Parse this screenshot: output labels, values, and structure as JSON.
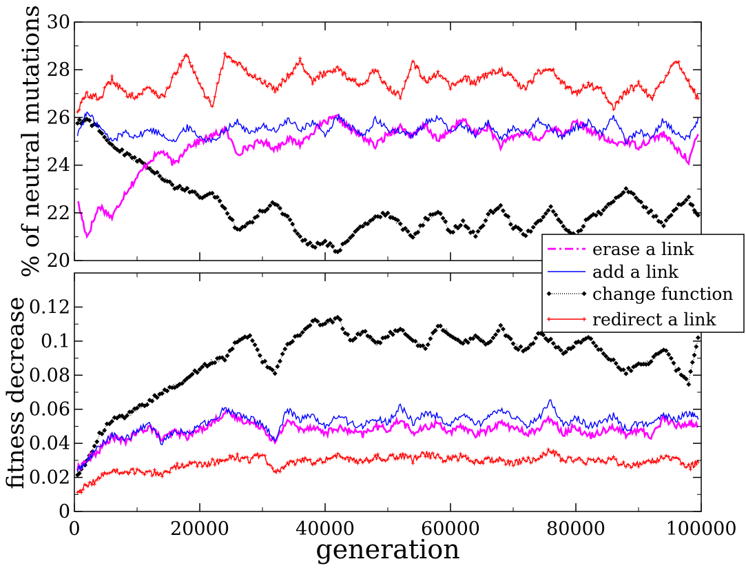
{
  "chart_data": [
    {
      "type": "line",
      "panel": "top",
      "ylabel": "% of neutral mutations",
      "xlabel": "",
      "xlim": [
        0,
        100000
      ],
      "ylim": [
        20,
        30
      ],
      "xticks": [],
      "yticks": [
        20,
        22,
        24,
        26,
        28,
        30
      ],
      "x": [
        500,
        2000,
        4000,
        6000,
        8000,
        10000,
        12000,
        14000,
        16000,
        18000,
        20000,
        22000,
        24000,
        26000,
        28000,
        30000,
        32000,
        34000,
        36000,
        38000,
        40000,
        42000,
        44000,
        46000,
        48000,
        50000,
        52000,
        54000,
        56000,
        58000,
        60000,
        62000,
        64000,
        66000,
        68000,
        70000,
        72000,
        74000,
        76000,
        78000,
        80000,
        82000,
        84000,
        86000,
        88000,
        90000,
        92000,
        94000,
        96000,
        98000,
        99500
      ],
      "series": [
        {
          "name": "erase a link",
          "color": "#ff00ff",
          "style": "dashdot",
          "values": [
            22.5,
            21.0,
            22.3,
            21.8,
            22.8,
            23.5,
            24.2,
            24.6,
            24.0,
            24.8,
            25.0,
            25.2,
            25.5,
            24.5,
            24.8,
            25.0,
            24.7,
            25.1,
            24.9,
            25.4,
            25.8,
            26.0,
            25.5,
            25.2,
            24.8,
            25.3,
            25.6,
            25.2,
            25.7,
            25.0,
            25.5,
            25.9,
            25.3,
            25.6,
            24.8,
            25.2,
            25.4,
            25.0,
            25.6,
            25.3,
            25.8,
            25.5,
            25.2,
            24.9,
            25.0,
            24.8,
            25.1,
            25.3,
            24.7,
            24.2,
            25.3
          ]
        },
        {
          "name": "add a link",
          "color": "#0000ff",
          "style": "solid",
          "values": [
            25.3,
            26.2,
            25.6,
            25.0,
            25.4,
            25.2,
            25.5,
            25.3,
            25.0,
            25.6,
            25.2,
            25.0,
            25.5,
            25.8,
            25.3,
            25.7,
            25.4,
            25.9,
            25.5,
            25.8,
            25.3,
            26.0,
            25.6,
            25.2,
            25.9,
            25.5,
            25.4,
            25.2,
            25.8,
            26.0,
            25.4,
            25.7,
            25.3,
            25.8,
            25.1,
            25.6,
            25.2,
            25.9,
            25.5,
            25.2,
            25.6,
            25.8,
            25.3,
            26.1,
            25.0,
            25.4,
            25.2,
            25.9,
            25.3,
            25.1,
            26.0
          ]
        },
        {
          "name": "change function",
          "color": "#000000",
          "style": "dotted-diamond",
          "values": [
            25.8,
            25.9,
            25.5,
            24.8,
            24.5,
            24.2,
            23.9,
            23.5,
            23.1,
            23.0,
            22.7,
            22.8,
            22.2,
            21.3,
            21.6,
            22.1,
            22.4,
            21.8,
            21.0,
            20.6,
            20.8,
            20.4,
            21.0,
            21.4,
            21.8,
            22.0,
            21.5,
            20.9,
            21.7,
            22.1,
            21.2,
            21.6,
            21.0,
            21.9,
            22.3,
            21.4,
            21.1,
            21.6,
            22.2,
            21.5,
            21.0,
            21.8,
            22.0,
            22.5,
            23.0,
            22.5,
            22.0,
            21.5,
            22.2,
            22.6,
            21.9
          ]
        },
        {
          "name": "redirect a link",
          "color": "#ff0000",
          "style": "solid-plus",
          "values": [
            26.3,
            27.0,
            26.8,
            27.6,
            27.0,
            26.9,
            27.3,
            26.8,
            27.8,
            28.6,
            27.3,
            26.5,
            28.6,
            28.3,
            27.8,
            27.5,
            27.2,
            27.7,
            28.4,
            27.5,
            27.9,
            28.1,
            27.6,
            27.3,
            28.0,
            27.2,
            26.9,
            28.4,
            27.5,
            27.8,
            27.3,
            27.6,
            27.5,
            27.8,
            28.0,
            27.6,
            27.2,
            27.9,
            28.1,
            27.4,
            27.0,
            27.4,
            27.2,
            26.4,
            27.1,
            27.4,
            26.8,
            27.5,
            28.4,
            27.5,
            26.8
          ]
        }
      ]
    },
    {
      "type": "line",
      "panel": "bottom",
      "ylabel": "fitness decrease",
      "xlabel": "generation",
      "xlim": [
        0,
        100000
      ],
      "ylim": [
        0,
        0.14
      ],
      "xticks": [
        0,
        20000,
        40000,
        60000,
        80000,
        100000
      ],
      "yticks": [
        0,
        0.02,
        0.04,
        0.06,
        0.08,
        0.1,
        0.12
      ],
      "x": [
        500,
        2000,
        4000,
        6000,
        8000,
        10000,
        12000,
        14000,
        16000,
        18000,
        20000,
        22000,
        24000,
        26000,
        28000,
        30000,
        32000,
        34000,
        36000,
        38000,
        40000,
        42000,
        44000,
        46000,
        48000,
        50000,
        52000,
        54000,
        56000,
        58000,
        60000,
        62000,
        64000,
        66000,
        68000,
        70000,
        72000,
        74000,
        76000,
        78000,
        80000,
        82000,
        84000,
        86000,
        88000,
        90000,
        92000,
        94000,
        96000,
        98000,
        99500
      ],
      "series": [
        {
          "name": "erase a link",
          "color": "#ff00ff",
          "style": "dashdot",
          "values": [
            0.025,
            0.03,
            0.036,
            0.044,
            0.041,
            0.046,
            0.05,
            0.042,
            0.047,
            0.044,
            0.048,
            0.052,
            0.058,
            0.055,
            0.052,
            0.05,
            0.04,
            0.054,
            0.048,
            0.05,
            0.046,
            0.049,
            0.047,
            0.045,
            0.05,
            0.048,
            0.054,
            0.046,
            0.049,
            0.052,
            0.046,
            0.05,
            0.045,
            0.048,
            0.052,
            0.049,
            0.046,
            0.048,
            0.055,
            0.046,
            0.05,
            0.044,
            0.047,
            0.05,
            0.045,
            0.048,
            0.044,
            0.055,
            0.05,
            0.052,
            0.05
          ]
        },
        {
          "name": "add a link",
          "color": "#0000ff",
          "style": "solid",
          "values": [
            0.024,
            0.03,
            0.038,
            0.045,
            0.042,
            0.047,
            0.052,
            0.04,
            0.048,
            0.046,
            0.05,
            0.054,
            0.06,
            0.057,
            0.054,
            0.052,
            0.042,
            0.06,
            0.054,
            0.056,
            0.05,
            0.056,
            0.052,
            0.05,
            0.055,
            0.052,
            0.062,
            0.052,
            0.058,
            0.056,
            0.05,
            0.058,
            0.05,
            0.055,
            0.06,
            0.056,
            0.05,
            0.054,
            0.065,
            0.05,
            0.055,
            0.05,
            0.052,
            0.056,
            0.048,
            0.052,
            0.05,
            0.056,
            0.054,
            0.058,
            0.054
          ]
        },
        {
          "name": "change function",
          "color": "#000000",
          "style": "dotted-diamond",
          "values": [
            0.022,
            0.03,
            0.045,
            0.054,
            0.056,
            0.06,
            0.065,
            0.07,
            0.074,
            0.078,
            0.084,
            0.088,
            0.09,
            0.1,
            0.104,
            0.088,
            0.082,
            0.098,
            0.104,
            0.112,
            0.11,
            0.114,
            0.1,
            0.106,
            0.098,
            0.103,
            0.108,
            0.1,
            0.096,
            0.11,
            0.104,
            0.098,
            0.104,
            0.098,
            0.108,
            0.098,
            0.094,
            0.104,
            0.1,
            0.094,
            0.098,
            0.102,
            0.094,
            0.088,
            0.082,
            0.086,
            0.088,
            0.096,
            0.084,
            0.076,
            0.102
          ]
        },
        {
          "name": "redirect a link",
          "color": "#ff0000",
          "style": "solid-plus",
          "values": [
            0.012,
            0.015,
            0.02,
            0.024,
            0.022,
            0.024,
            0.023,
            0.022,
            0.026,
            0.028,
            0.027,
            0.029,
            0.03,
            0.032,
            0.03,
            0.034,
            0.022,
            0.028,
            0.03,
            0.029,
            0.031,
            0.033,
            0.03,
            0.029,
            0.032,
            0.031,
            0.033,
            0.03,
            0.034,
            0.032,
            0.03,
            0.033,
            0.029,
            0.031,
            0.03,
            0.028,
            0.031,
            0.03,
            0.036,
            0.03,
            0.031,
            0.029,
            0.03,
            0.031,
            0.026,
            0.028,
            0.03,
            0.032,
            0.03,
            0.026,
            0.029
          ]
        }
      ]
    }
  ],
  "legend": {
    "placement": "right-middle",
    "entries": [
      "erase a link",
      "add a link",
      "change function",
      "redirect a link"
    ]
  }
}
